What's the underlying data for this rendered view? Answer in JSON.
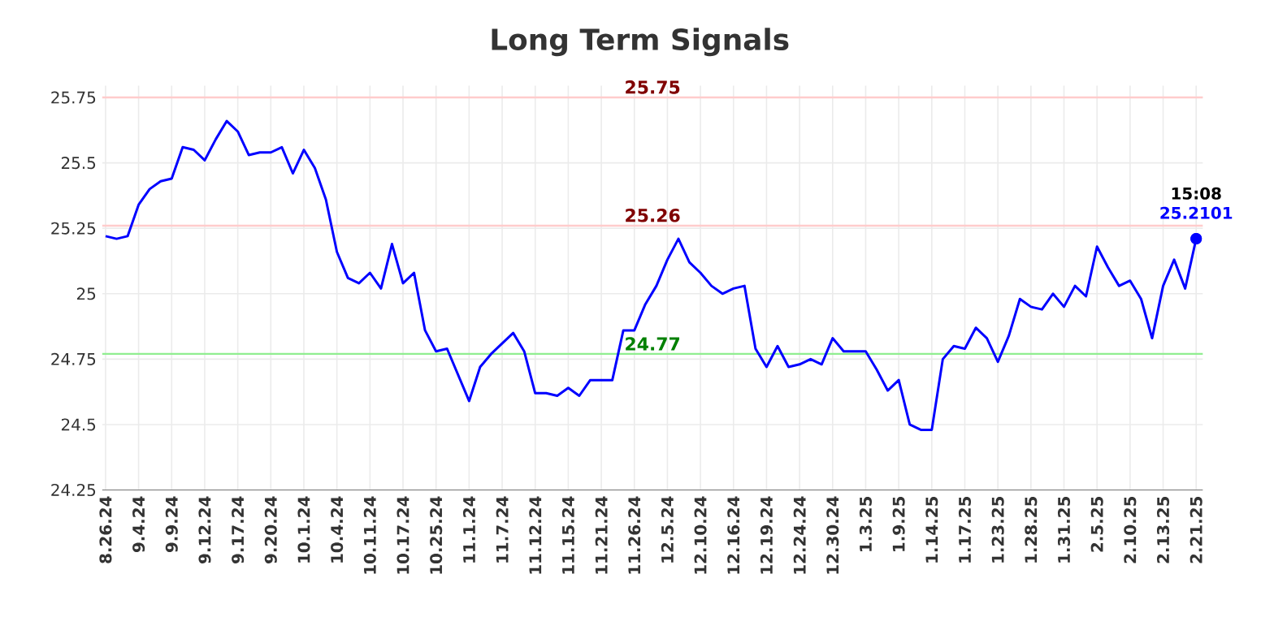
{
  "chart_data": {
    "type": "line",
    "title": "Long Term Signals",
    "categories": [
      "8.26.24",
      null,
      null,
      "9.4.24",
      null,
      null,
      "9.9.24",
      null,
      null,
      "9.12.24",
      null,
      null,
      "9.17.24",
      null,
      null,
      "9.20.24",
      null,
      null,
      "10.1.24",
      null,
      null,
      "10.4.24",
      null,
      null,
      "10.11.24",
      null,
      null,
      "10.17.24",
      null,
      null,
      "10.25.24",
      null,
      null,
      "11.1.24",
      null,
      null,
      "11.7.24",
      null,
      null,
      "11.12.24",
      null,
      null,
      "11.15.24",
      null,
      null,
      "11.21.24",
      null,
      null,
      "11.26.24",
      null,
      null,
      "12.5.24",
      null,
      null,
      "12.10.24",
      null,
      null,
      "12.16.24",
      null,
      null,
      "12.19.24",
      null,
      null,
      "12.24.24",
      null,
      null,
      "12.30.24",
      null,
      null,
      "1.3.25",
      null,
      null,
      "1.9.25",
      null,
      null,
      "1.14.25",
      null,
      null,
      "1.17.25",
      null,
      null,
      "1.23.25",
      null,
      null,
      "1.28.25",
      null,
      null,
      "1.31.25",
      null,
      null,
      "2.5.25",
      null,
      null,
      "2.10.25",
      null,
      null,
      "2.13.25",
      null,
      null,
      "2.21.25"
    ],
    "values": [
      25.22,
      25.21,
      25.22,
      25.34,
      25.4,
      25.43,
      25.44,
      25.56,
      25.55,
      25.51,
      25.59,
      25.66,
      25.62,
      25.53,
      25.54,
      25.54,
      25.56,
      25.46,
      25.55,
      25.48,
      25.36,
      25.16,
      25.06,
      25.04,
      25.08,
      25.02,
      25.19,
      25.04,
      25.08,
      24.86,
      24.78,
      24.79,
      24.69,
      24.59,
      24.72,
      24.77,
      24.81,
      24.85,
      24.78,
      24.62,
      24.62,
      24.61,
      24.64,
      24.61,
      24.67,
      24.67,
      24.67,
      24.86,
      24.86,
      24.96,
      25.03,
      25.13,
      25.21,
      25.12,
      25.08,
      25.03,
      25.0,
      25.02,
      25.03,
      24.79,
      24.72,
      24.8,
      24.72,
      24.73,
      24.75,
      24.73,
      24.83,
      24.78,
      24.78,
      24.78,
      24.71,
      24.63,
      24.67,
      24.5,
      24.48,
      24.48,
      24.75,
      24.8,
      24.79,
      24.87,
      24.83,
      24.74,
      24.84,
      24.98,
      24.95,
      24.94,
      25.0,
      24.95,
      25.03,
      24.99,
      25.18,
      25.1,
      25.03,
      25.05,
      24.98,
      24.83,
      25.03,
      25.13,
      25.02,
      25.2101
    ],
    "color": "#0000ff",
    "ylim": [
      24.25,
      25.75
    ],
    "yticks": [
      24.25,
      24.5,
      24.75,
      25,
      25.25,
      25.5,
      25.75
    ],
    "grid": true,
    "ref_lines": [
      {
        "axis": "y",
        "value": 25.75,
        "label": "25.75",
        "color": "#ffcccc"
      },
      {
        "axis": "y",
        "value": 25.26,
        "label": "25.26",
        "color": "#ffcccc"
      },
      {
        "axis": "y",
        "value": 24.77,
        "label": "24.77",
        "color": "#90ee90"
      }
    ],
    "annotations": [
      {
        "text": "15:08",
        "x": "2.21.25",
        "y": 25.2101
      },
      {
        "text": "25.2101",
        "x": "2.21.25",
        "y": 25.2101
      }
    ]
  }
}
